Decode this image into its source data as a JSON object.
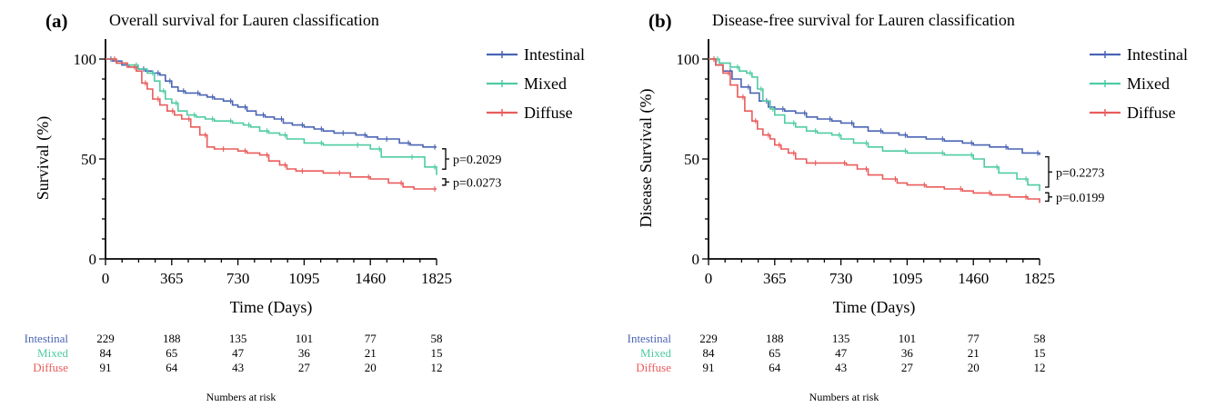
{
  "chart_data": [
    {
      "type": "line",
      "panel_label": "(a)",
      "title": "Overall survival for Lauren classification",
      "xlabel": "Time (Days)",
      "ylabel": "Survival (%)",
      "xlim": [
        0,
        1825
      ],
      "ylim": [
        0,
        100
      ],
      "xticks": [
        0,
        365,
        730,
        1095,
        1460,
        1825
      ],
      "xtick_labels": [
        "0",
        "365",
        "730",
        "1095",
        "1460",
        "1825"
      ],
      "yticks": [
        0,
        50,
        100
      ],
      "ytick_labels": [
        "0",
        "50",
        "100"
      ],
      "legend_position": "right",
      "series": [
        {
          "name": "Intestinal",
          "color": "#4a64b4",
          "x": [
            0,
            40,
            90,
            130,
            180,
            220,
            260,
            300,
            330,
            365,
            400,
            440,
            480,
            520,
            560,
            600,
            650,
            700,
            730,
            780,
            830,
            880,
            930,
            980,
            1030,
            1095,
            1150,
            1200,
            1260,
            1320,
            1380,
            1440,
            1500,
            1560,
            1620,
            1680,
            1750,
            1825
          ],
          "y": [
            100,
            99,
            97,
            96,
            95,
            94,
            93,
            92,
            89,
            86,
            84,
            83,
            83,
            82,
            81,
            80,
            79,
            77,
            76,
            74,
            72,
            71,
            70,
            68,
            67,
            66,
            65,
            64,
            63,
            63,
            62,
            61,
            60,
            60,
            58,
            57,
            56,
            56
          ]
        },
        {
          "name": "Mixed",
          "color": "#4fcba4",
          "x": [
            0,
            60,
            120,
            180,
            230,
            270,
            300,
            330,
            365,
            400,
            450,
            500,
            550,
            600,
            650,
            700,
            760,
            800,
            850,
            900,
            960,
            1000,
            1095,
            1200,
            1300,
            1400,
            1460,
            1520,
            1600,
            1700,
            1760,
            1825
          ],
          "y": [
            100,
            98,
            97,
            95,
            93,
            89,
            84,
            80,
            78,
            74,
            72,
            71,
            70,
            69,
            69,
            68,
            67,
            66,
            64,
            63,
            62,
            60,
            58,
            57,
            57,
            57,
            55,
            51,
            51,
            51,
            46,
            42
          ]
        },
        {
          "name": "Diffuse",
          "color": "#ea5b5b",
          "x": [
            0,
            60,
            120,
            170,
            200,
            230,
            260,
            300,
            340,
            380,
            420,
            470,
            520,
            560,
            600,
            660,
            730,
            780,
            850,
            900,
            960,
            1000,
            1050,
            1095,
            1200,
            1300,
            1350,
            1460,
            1560,
            1640,
            1700,
            1825
          ],
          "y": [
            100,
            98,
            96,
            94,
            88,
            85,
            80,
            77,
            74,
            72,
            70,
            66,
            62,
            56,
            55,
            55,
            54,
            53,
            52,
            49,
            47,
            45,
            44,
            44,
            43,
            43,
            41,
            40,
            38,
            36,
            35,
            35
          ]
        }
      ],
      "annotations": [
        {
          "text": "p=0.2029",
          "y_from": 56,
          "y_to": 44
        },
        {
          "text": "p=0.0273",
          "y_from": 41,
          "y_to": 36
        }
      ],
      "risk_table": {
        "title": "Numbers at risk",
        "timepoints": [
          0,
          365,
          730,
          1095,
          1460,
          1825
        ],
        "rows": [
          {
            "label": "Intestinal",
            "color": "#4a64b4",
            "values": [
              229,
              188,
              135,
              101,
              77,
              58
            ]
          },
          {
            "label": "Mixed",
            "color": "#4fcba4",
            "values": [
              84,
              65,
              47,
              36,
              21,
              15
            ]
          },
          {
            "label": "Diffuse",
            "color": "#ea5b5b",
            "values": [
              91,
              64,
              43,
              27,
              20,
              12
            ]
          }
        ]
      }
    },
    {
      "type": "line",
      "panel_label": "(b)",
      "title": "Disease-free survival for Lauren classification",
      "xlabel": "Time (Days)",
      "ylabel": "Disease Survival (%)",
      "xlim": [
        0,
        1825
      ],
      "ylim": [
        0,
        100
      ],
      "xticks": [
        0,
        365,
        730,
        1095,
        1460,
        1825
      ],
      "xtick_labels": [
        "0",
        "365",
        "730",
        "1095",
        "1460",
        "1825"
      ],
      "yticks": [
        0,
        50,
        100
      ],
      "ytick_labels": [
        "0",
        "50",
        "100"
      ],
      "legend_position": "right",
      "series": [
        {
          "name": "Intestinal",
          "color": "#4a64b4",
          "x": [
            0,
            40,
            80,
            130,
            180,
            230,
            280,
            330,
            365,
            420,
            480,
            540,
            600,
            680,
            730,
            800,
            880,
            960,
            1050,
            1095,
            1200,
            1300,
            1400,
            1460,
            1550,
            1650,
            1730,
            1825
          ],
          "y": [
            100,
            97,
            94,
            90,
            86,
            83,
            79,
            76,
            75,
            74,
            73,
            71,
            70,
            69,
            68,
            66,
            64,
            63,
            62,
            61,
            60,
            59,
            58,
            57,
            56,
            55,
            53,
            52
          ]
        },
        {
          "name": "Mixed",
          "color": "#4fcba4",
          "x": [
            0,
            60,
            120,
            170,
            210,
            240,
            270,
            300,
            340,
            365,
            420,
            480,
            540,
            600,
            680,
            730,
            800,
            880,
            960,
            1095,
            1200,
            1300,
            1400,
            1460,
            1520,
            1600,
            1700,
            1760,
            1825
          ],
          "y": [
            100,
            98,
            96,
            94,
            93,
            91,
            85,
            79,
            75,
            72,
            68,
            66,
            64,
            63,
            62,
            60,
            58,
            56,
            54,
            53,
            53,
            52,
            52,
            50,
            46,
            43,
            40,
            37,
            34
          ]
        },
        {
          "name": "Diffuse",
          "color": "#ea5b5b",
          "x": [
            0,
            40,
            80,
            120,
            160,
            200,
            240,
            270,
            300,
            340,
            365,
            400,
            440,
            480,
            540,
            600,
            700,
            760,
            820,
            880,
            960,
            1040,
            1095,
            1200,
            1300,
            1400,
            1460,
            1560,
            1660,
            1760,
            1825
          ],
          "y": [
            100,
            97,
            93,
            87,
            81,
            74,
            69,
            65,
            62,
            60,
            57,
            55,
            53,
            50,
            48,
            48,
            48,
            47,
            45,
            42,
            40,
            38,
            37,
            36,
            35,
            34,
            33,
            32,
            31,
            30,
            28
          ]
        }
      ],
      "annotations": [
        {
          "text": "p=0.2273",
          "y_from": 52,
          "y_to": 35
        },
        {
          "text": "p=0.0199",
          "y_from": 34,
          "y_to": 28
        }
      ],
      "risk_table": {
        "title": "Numbers at risk",
        "timepoints": [
          0,
          365,
          730,
          1095,
          1460,
          1825
        ],
        "rows": [
          {
            "label": "Intestinal",
            "color": "#4a64b4",
            "values": [
              229,
              188,
              135,
              101,
              77,
              58
            ]
          },
          {
            "label": "Mixed",
            "color": "#4fcba4",
            "values": [
              84,
              65,
              47,
              36,
              21,
              15
            ]
          },
          {
            "label": "Diffuse",
            "color": "#ea5b5b",
            "values": [
              91,
              64,
              43,
              27,
              20,
              12
            ]
          }
        ]
      }
    }
  ]
}
